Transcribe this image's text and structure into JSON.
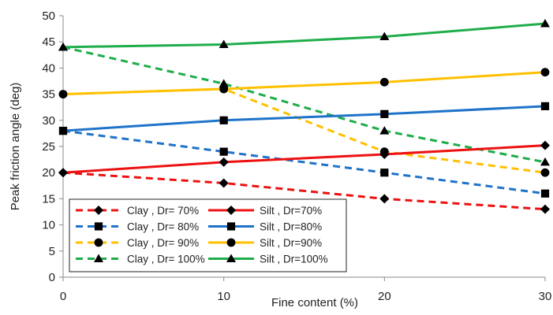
{
  "chart_data": {
    "type": "line",
    "title": "",
    "xlabel": "Fine content (%)",
    "ylabel": "Peak friction angle (deg)",
    "x": [
      0,
      10,
      20,
      30
    ],
    "xticks": [
      "0",
      "10",
      "20",
      "30"
    ],
    "yticks": [
      "0",
      "5",
      "10",
      "15",
      "20",
      "25",
      "30",
      "35",
      "40",
      "45",
      "50"
    ],
    "xlim": [
      0,
      30
    ],
    "ylim": [
      0,
      50
    ],
    "grid": false,
    "legend_position": "bottom-left",
    "series": [
      {
        "name": "Clay , Dr= 70%",
        "values": [
          20,
          18,
          15,
          13
        ],
        "color": "#ee1111",
        "dash": true,
        "marker": "diamond"
      },
      {
        "name": "Silt , Dr=70%",
        "values": [
          20,
          22,
          23.5,
          25.2
        ],
        "color": "#ee1111",
        "dash": false,
        "marker": "diamond"
      },
      {
        "name": "Clay , Dr= 80%",
        "values": [
          28,
          24,
          20,
          16
        ],
        "color": "#1f73c9",
        "dash": true,
        "marker": "square"
      },
      {
        "name": "Silt , Dr=80%",
        "values": [
          28,
          30,
          31.2,
          32.7
        ],
        "color": "#1f73c9",
        "dash": false,
        "marker": "square"
      },
      {
        "name": "Clay , Dr= 90%",
        "values": [
          35,
          36,
          24,
          20
        ],
        "color": "#ffc000",
        "dash": true,
        "marker": "circle"
      },
      {
        "name": "Silt , Dr=90%",
        "values": [
          35,
          36,
          37.3,
          39.2
        ],
        "color": "#ffc000",
        "dash": false,
        "marker": "circle"
      },
      {
        "name": "Clay , Dr= 100%",
        "values": [
          44,
          37,
          28,
          22
        ],
        "color": "#1fad4b",
        "dash": true,
        "marker": "triangle"
      },
      {
        "name": "Silt , Dr=100%",
        "values": [
          44,
          44.5,
          46,
          48.5
        ],
        "color": "#1fad4b",
        "dash": false,
        "marker": "triangle"
      }
    ]
  }
}
